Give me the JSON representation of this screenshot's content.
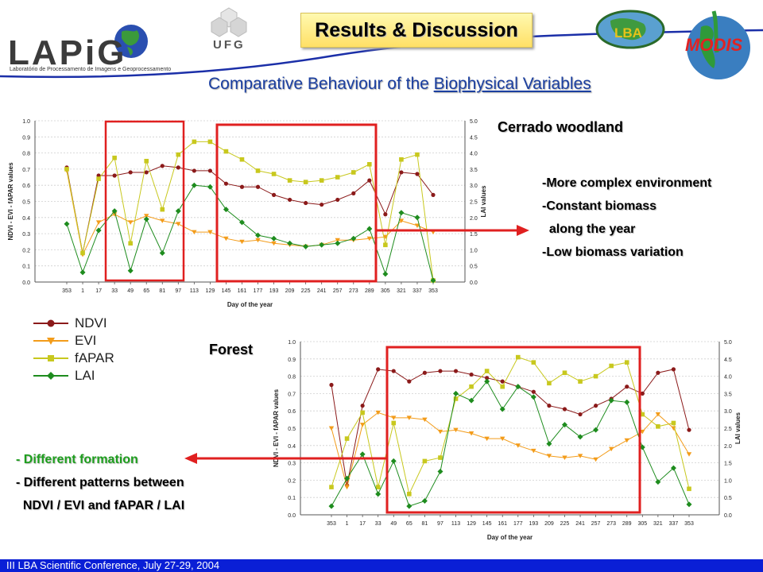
{
  "header": {
    "logo_text": "LAPiG",
    "logo_subtitle": "Laboratório de Processamento de Imagens e Geoprocessamento",
    "ufg_text": "UFG",
    "lba_text": "LBA",
    "modis_text": "MODIS",
    "results_title": "Results & Discussion",
    "subtitle_pre": "Comparative Behaviour of the ",
    "subtitle_underlined": "Biophysical Variables"
  },
  "sections": {
    "cerrado_label": "Cerrado woodland",
    "forest_label": "Forest",
    "cerrado_bullets": [
      "-More complex environment",
      "-Constant biomass",
      "  along the year",
      "-Low biomass variation"
    ],
    "forest_bullets": [
      "- Different formation",
      "- Different patterns between",
      "  NDVI / EVI and fAPAR / LAI"
    ]
  },
  "legend": [
    {
      "name": "NDVI",
      "color": "#8b1a1a",
      "marker": "circle"
    },
    {
      "name": "EVI",
      "color": "#f39c1a",
      "marker": "triangle-down"
    },
    {
      "name": "fAPAR",
      "color": "#c8c81e",
      "marker": "square"
    },
    {
      "name": "LAI",
      "color": "#1e8c1e",
      "marker": "diamond"
    }
  ],
  "footer": "III LBA Scientific Conference, July 27-29, 2004",
  "colors": {
    "highlight_box": "#e02020",
    "arrow": "#e02020",
    "footer_bg": "#0a1fd6",
    "subtitle": "#1b3fa0"
  },
  "chart_data": [
    {
      "type": "line",
      "name": "Cerrado woodland",
      "xlabel": "Day of the year",
      "ylabel": "NDVI - EVI - fAPAR values",
      "y2label": "LAI values",
      "ylim": [
        0,
        1.0
      ],
      "y2lim": [
        0,
        5.0
      ],
      "yticks": [
        "0.0",
        "0.1",
        "0.2",
        "0.3",
        "0.4",
        "0.5",
        "0.6",
        "0.7",
        "0.8",
        "0.9",
        "1.0"
      ],
      "y2ticks": [
        "0.0",
        "0.5",
        "1.0",
        "1.5",
        "2.0",
        "2.5",
        "3.0",
        "3.5",
        "4.0",
        "4.5",
        "5.0"
      ],
      "categories": [
        "353",
        "1",
        "17",
        "33",
        "49",
        "65",
        "81",
        "97",
        "113",
        "129",
        "145",
        "161",
        "177",
        "193",
        "209",
        "225",
        "241",
        "257",
        "273",
        "289",
        "305",
        "321",
        "337",
        "353"
      ],
      "series": [
        {
          "name": "NDVI",
          "axis": "left",
          "values": [
            0.71,
            0.18,
            0.66,
            0.66,
            0.68,
            0.68,
            0.72,
            0.71,
            0.69,
            0.69,
            0.61,
            0.59,
            0.59,
            0.54,
            0.51,
            0.49,
            0.48,
            0.51,
            0.55,
            0.63,
            0.42,
            0.68,
            0.67,
            0.54
          ]
        },
        {
          "name": "EVI",
          "axis": "left",
          "values": [
            0.69,
            0.17,
            0.37,
            0.42,
            0.37,
            0.41,
            0.38,
            0.36,
            0.31,
            0.31,
            0.27,
            0.25,
            0.26,
            0.24,
            0.23,
            0.22,
            0.23,
            0.26,
            0.26,
            0.27,
            0.28,
            0.38,
            0.35,
            0.31
          ]
        },
        {
          "name": "fAPAR",
          "axis": "left",
          "values": [
            0.7,
            0.18,
            0.64,
            0.77,
            0.24,
            0.75,
            0.45,
            0.79,
            0.87,
            0.87,
            0.81,
            0.76,
            0.69,
            0.67,
            0.63,
            0.62,
            0.63,
            0.65,
            0.68,
            0.73,
            0.23,
            0.76,
            0.79,
            0.01
          ]
        },
        {
          "name": "LAI",
          "axis": "right",
          "values": [
            1.8,
            0.3,
            1.6,
            2.2,
            0.35,
            1.95,
            0.9,
            2.2,
            3.0,
            2.95,
            2.25,
            1.85,
            1.45,
            1.35,
            1.2,
            1.1,
            1.15,
            1.2,
            1.35,
            1.65,
            0.25,
            2.15,
            2.0,
            0.05
          ]
        }
      ]
    },
    {
      "type": "line",
      "name": "Forest",
      "xlabel": "Day of the year",
      "ylabel": "NDVI - EVI - fAPAR values",
      "y2label": "LAI values",
      "ylim": [
        0,
        1.0
      ],
      "y2lim": [
        0,
        5.0
      ],
      "yticks": [
        "0.0",
        "0.1",
        "0.2",
        "0.3",
        "0.4",
        "0.5",
        "0.6",
        "0.7",
        "0.8",
        "0.9",
        "1.0"
      ],
      "y2ticks": [
        "0.0",
        "0.5",
        "1.0",
        "1.5",
        "2.0",
        "2.5",
        "3.0",
        "3.5",
        "4.0",
        "4.5",
        "5.0"
      ],
      "categories": [
        "353",
        "1",
        "17",
        "33",
        "49",
        "65",
        "81",
        "97",
        "113",
        "129",
        "145",
        "161",
        "177",
        "193",
        "209",
        "225",
        "241",
        "257",
        "273",
        "289",
        "305",
        "321",
        "337",
        "353"
      ],
      "series": [
        {
          "name": "NDVI",
          "axis": "left",
          "values": [
            0.75,
            0.17,
            0.63,
            0.84,
            0.83,
            0.77,
            0.82,
            0.83,
            0.83,
            0.81,
            0.79,
            0.77,
            0.74,
            0.71,
            0.63,
            0.61,
            0.58,
            0.63,
            0.67,
            0.74,
            0.7,
            0.82,
            0.84,
            0.49
          ]
        },
        {
          "name": "EVI",
          "axis": "left",
          "values": [
            0.5,
            0.16,
            0.52,
            0.59,
            0.56,
            0.56,
            0.55,
            0.48,
            0.49,
            0.47,
            0.44,
            0.44,
            0.4,
            0.37,
            0.34,
            0.33,
            0.34,
            0.32,
            0.38,
            0.43,
            0.48,
            0.58,
            0.5,
            0.35
          ]
        },
        {
          "name": "fAPAR",
          "axis": "left",
          "values": [
            0.16,
            0.44,
            0.59,
            0.16,
            0.53,
            0.12,
            0.31,
            0.33,
            0.67,
            0.74,
            0.83,
            0.74,
            0.91,
            0.88,
            0.76,
            0.82,
            0.77,
            0.8,
            0.86,
            0.88,
            0.58,
            0.51,
            0.53,
            0.15
          ]
        },
        {
          "name": "LAI",
          "axis": "right",
          "values": [
            0.25,
            1.05,
            1.75,
            0.6,
            1.55,
            0.25,
            0.4,
            1.25,
            3.5,
            3.3,
            3.85,
            3.05,
            3.7,
            3.4,
            2.05,
            2.6,
            2.25,
            2.45,
            3.3,
            3.25,
            1.95,
            0.95,
            1.35,
            0.3
          ]
        }
      ]
    }
  ]
}
